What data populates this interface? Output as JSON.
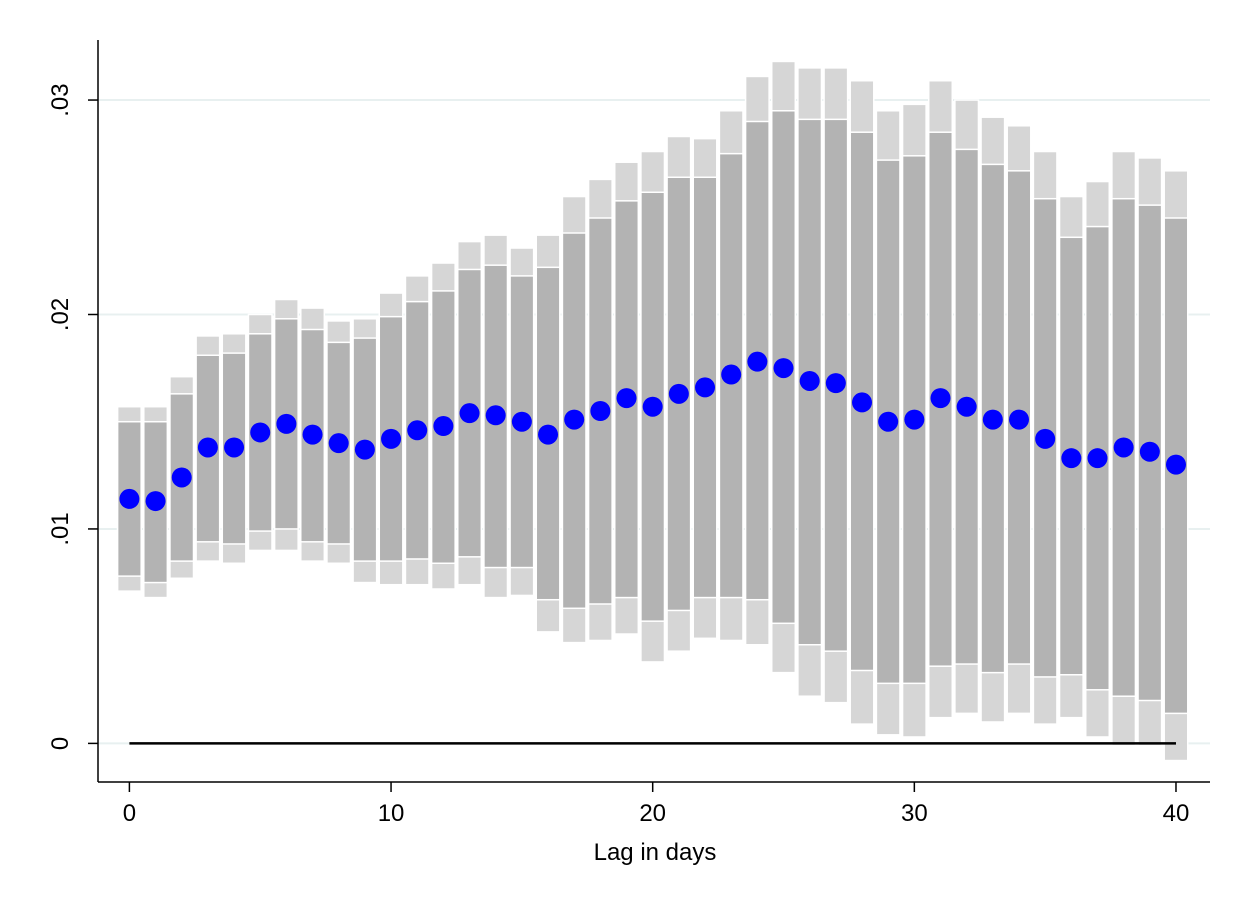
{
  "chart_data": {
    "type": "scatter",
    "xlabel": "Lag in days",
    "ylabel": "",
    "xlim": [
      -1.2,
      41.3
    ],
    "ylim": [
      -0.0018,
      0.0328
    ],
    "x_ticks": [
      0,
      10,
      20,
      30,
      40
    ],
    "x_tick_labels": [
      "0",
      "10",
      "20",
      "30",
      "40"
    ],
    "y_ticks": [
      0,
      0.01,
      0.02,
      0.03
    ],
    "y_tick_labels": [
      "0",
      ".01",
      ".02",
      ".03"
    ],
    "grid": "horizontal",
    "legend": "none",
    "reference_line": {
      "y": 0,
      "x_from": 0,
      "x_to": 40
    },
    "x": [
      0,
      1,
      2,
      3,
      4,
      5,
      6,
      7,
      8,
      9,
      10,
      11,
      12,
      13,
      14,
      15,
      16,
      17,
      18,
      19,
      20,
      21,
      22,
      23,
      24,
      25,
      26,
      27,
      28,
      29,
      30,
      31,
      32,
      33,
      34,
      35,
      36,
      37,
      38,
      39,
      40
    ],
    "estimate": [
      0.0114,
      0.0113,
      0.0124,
      0.0138,
      0.0138,
      0.0145,
      0.0149,
      0.0144,
      0.014,
      0.0137,
      0.0142,
      0.0146,
      0.0148,
      0.0154,
      0.0153,
      0.015,
      0.0144,
      0.0151,
      0.0155,
      0.0161,
      0.0157,
      0.0163,
      0.0166,
      0.0172,
      0.0178,
      0.0175,
      0.0169,
      0.0168,
      0.0159,
      0.015,
      0.0151,
      0.0161,
      0.0157,
      0.0151,
      0.0151,
      0.0142,
      0.0133,
      0.0133,
      0.0138,
      0.0136,
      0.013
    ],
    "ci_outer_low": [
      0.0071,
      0.0068,
      0.0077,
      0.0085,
      0.0084,
      0.009,
      0.009,
      0.0085,
      0.0084,
      0.0075,
      0.0074,
      0.0074,
      0.0072,
      0.0074,
      0.0068,
      0.0069,
      0.0052,
      0.0047,
      0.0048,
      0.0051,
      0.0038,
      0.0043,
      0.0049,
      0.0048,
      0.0046,
      0.0033,
      0.0022,
      0.0019,
      0.0009,
      0.0004,
      0.0003,
      0.0012,
      0.0014,
      0.001,
      0.0014,
      0.0009,
      0.0012,
      0.0003,
      -0.0001,
      -0.0001,
      -0.0008
    ],
    "ci_inner_low": [
      0.0078,
      0.0075,
      0.0085,
      0.0094,
      0.0093,
      0.0099,
      0.01,
      0.0094,
      0.0093,
      0.0085,
      0.0085,
      0.0086,
      0.0084,
      0.0087,
      0.0082,
      0.0082,
      0.0067,
      0.0063,
      0.0065,
      0.0068,
      0.0057,
      0.0062,
      0.0068,
      0.0068,
      0.0067,
      0.0056,
      0.0046,
      0.0043,
      0.0034,
      0.0028,
      0.0028,
      0.0036,
      0.0037,
      0.0033,
      0.0037,
      0.0031,
      0.0032,
      0.0025,
      0.0022,
      0.002,
      0.0014
    ],
    "ci_inner_high": [
      0.015,
      0.015,
      0.0163,
      0.0181,
      0.0182,
      0.0191,
      0.0198,
      0.0193,
      0.0187,
      0.0189,
      0.0199,
      0.0206,
      0.0211,
      0.0221,
      0.0223,
      0.0218,
      0.0222,
      0.0238,
      0.0245,
      0.0253,
      0.0257,
      0.0264,
      0.0264,
      0.0275,
      0.029,
      0.0295,
      0.0291,
      0.0291,
      0.0285,
      0.0272,
      0.0274,
      0.0285,
      0.0277,
      0.027,
      0.0267,
      0.0254,
      0.0236,
      0.0241,
      0.0254,
      0.0251,
      0.0245
    ],
    "ci_outer_high": [
      0.0157,
      0.0157,
      0.0171,
      0.019,
      0.0191,
      0.02,
      0.0207,
      0.0203,
      0.0197,
      0.0198,
      0.021,
      0.0218,
      0.0224,
      0.0234,
      0.0237,
      0.0231,
      0.0237,
      0.0255,
      0.0263,
      0.0271,
      0.0276,
      0.0283,
      0.0282,
      0.0295,
      0.0311,
      0.0318,
      0.0315,
      0.0315,
      0.0309,
      0.0295,
      0.0298,
      0.0309,
      0.03,
      0.0292,
      0.0288,
      0.0276,
      0.0255,
      0.0262,
      0.0276,
      0.0273,
      0.0267
    ],
    "colors": {
      "marker": "#0000ff",
      "ci_inner": "#b3b3b3",
      "ci_outer": "#d6d6d6",
      "bar_border": "#ffffff",
      "grid": "#e8f0f0",
      "axis": "#000000"
    }
  }
}
